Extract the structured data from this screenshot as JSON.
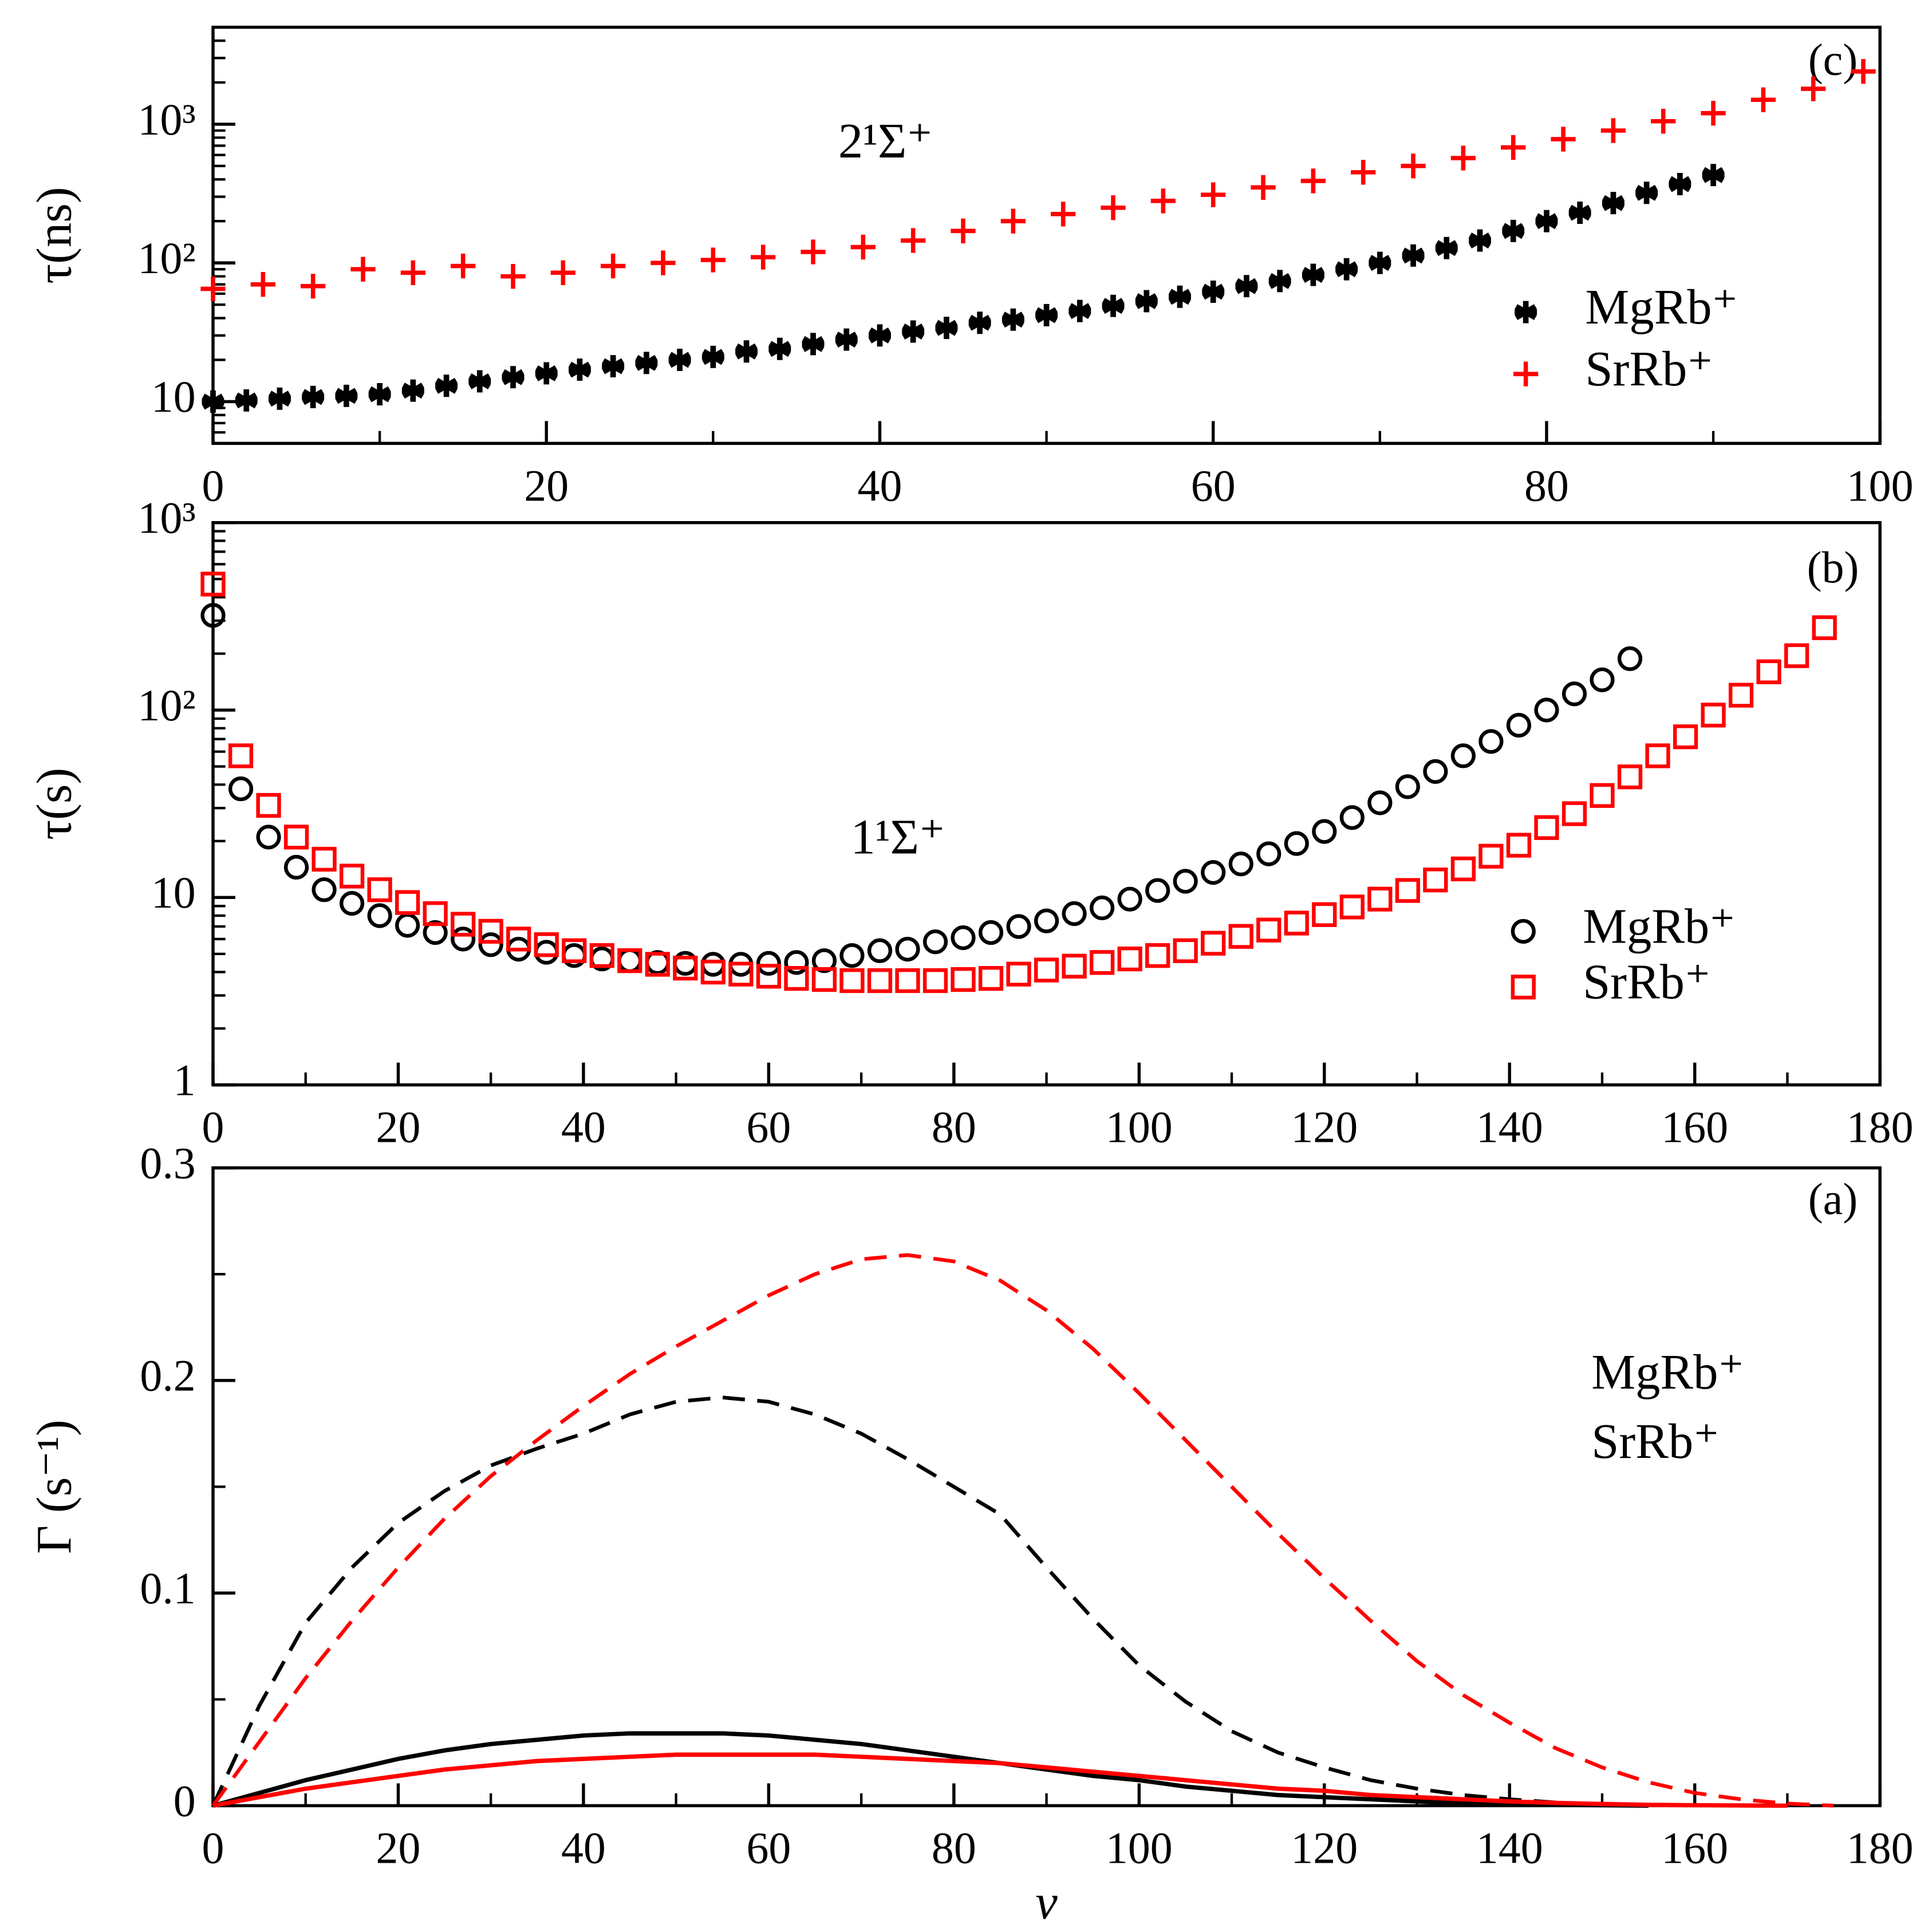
{
  "chart_data": [
    {
      "type": "scatter",
      "panel_label": "(c)",
      "annotation": "2¹Σ⁺",
      "ylabel": "τ(ns)",
      "log_y": true,
      "xlim": [
        0,
        100
      ],
      "xticks": [
        0,
        20,
        40,
        60,
        80,
        100
      ],
      "xminorticks": [
        10,
        30,
        50,
        70,
        90
      ],
      "ylim": [
        5,
        5000
      ],
      "yticks": [
        10,
        {
          "value": 100,
          "label": "10²"
        },
        {
          "value": 1000,
          "label": "10³"
        }
      ],
      "yminorticks": [
        6,
        7,
        8,
        9,
        20,
        30,
        40,
        50,
        60,
        70,
        80,
        90,
        200,
        300,
        400,
        500,
        600,
        700,
        800,
        900,
        2000,
        3000,
        4000
      ],
      "series": [
        {
          "name": "MgRb⁺",
          "color": "#000000",
          "marker": "asterisk",
          "x": [
            0,
            2,
            4,
            6,
            8,
            10,
            12,
            14,
            16,
            18,
            20,
            22,
            24,
            26,
            28,
            30,
            32,
            34,
            36,
            38,
            40,
            42,
            44,
            46,
            48,
            50,
            52,
            54,
            56,
            58,
            60,
            62,
            64,
            66,
            68,
            70,
            72,
            74,
            76,
            78,
            80,
            82,
            84,
            86,
            88,
            90
          ],
          "values": [
            10,
            10.2,
            10.5,
            10.8,
            11,
            11.3,
            12,
            13,
            14,
            15,
            16,
            17,
            18,
            19,
            20,
            21,
            23,
            24,
            26,
            28,
            30,
            32,
            34,
            37,
            39,
            42,
            45,
            49,
            53,
            57,
            62,
            68,
            74,
            82,
            90,
            100,
            113,
            128,
            145,
            170,
            200,
            230,
            270,
            320,
            370,
            430
          ]
        },
        {
          "name": "SrRb⁺",
          "color": "#ff0000",
          "marker": "plus",
          "x": [
            0,
            3,
            6,
            9,
            12,
            15,
            18,
            21,
            24,
            27,
            30,
            33,
            36,
            39,
            42,
            45,
            48,
            51,
            54,
            57,
            60,
            63,
            66,
            69,
            72,
            75,
            78,
            81,
            84,
            87,
            90,
            93,
            96,
            99
          ],
          "values": [
            65,
            70,
            68,
            90,
            85,
            95,
            80,
            85,
            95,
            100,
            105,
            110,
            120,
            130,
            145,
            170,
            200,
            225,
            250,
            280,
            310,
            350,
            390,
            450,
            500,
            570,
            680,
            780,
            900,
            1050,
            1200,
            1500,
            1800,
            2400
          ]
        }
      ]
    },
    {
      "type": "scatter",
      "panel_label": "(b)",
      "annotation": "1¹Σ⁺",
      "ylabel": "τ(s)",
      "log_y": true,
      "xlim": [
        0,
        180
      ],
      "xticks": [
        0,
        20,
        40,
        60,
        80,
        100,
        120,
        140,
        160,
        180
      ],
      "xminorticks": [
        10,
        30,
        50,
        70,
        90,
        110,
        130,
        150,
        170
      ],
      "ylim": [
        1,
        1000
      ],
      "yticks": [
        1,
        10,
        {
          "value": 100,
          "label": "10²"
        },
        {
          "value": 1000,
          "label": "10³"
        }
      ],
      "yminorticks": [
        2,
        3,
        4,
        5,
        6,
        7,
        8,
        9,
        20,
        30,
        40,
        50,
        60,
        70,
        80,
        90,
        200,
        300,
        400,
        500,
        600,
        700,
        800,
        900
      ],
      "series": [
        {
          "name": "MgRb⁺",
          "color": "#000000",
          "marker": "circle",
          "x": [
            0,
            3,
            6,
            9,
            12,
            15,
            18,
            21,
            24,
            27,
            30,
            33,
            36,
            39,
            42,
            45,
            48,
            51,
            54,
            57,
            60,
            63,
            66,
            69,
            72,
            75,
            78,
            81,
            84,
            87,
            90,
            93,
            96,
            99,
            102,
            105,
            108,
            111,
            114,
            117,
            120,
            123,
            126,
            129,
            132,
            135,
            138,
            141,
            144,
            147,
            150,
            153
          ],
          "values": [
            320,
            38,
            21,
            14.5,
            11,
            9.3,
            8,
            7.1,
            6.5,
            6,
            5.6,
            5.3,
            5.1,
            4.9,
            4.7,
            4.6,
            4.5,
            4.45,
            4.4,
            4.4,
            4.45,
            4.5,
            4.6,
            4.9,
            5.2,
            5.3,
            5.8,
            6.1,
            6.5,
            7.0,
            7.5,
            8.2,
            8.8,
            9.8,
            10.9,
            12.2,
            13.6,
            15.1,
            17.1,
            19.4,
            22.5,
            26.7,
            32,
            39,
            47,
            57,
            68,
            83,
            100,
            122,
            145,
            188
          ]
        },
        {
          "name": "SrRb⁺",
          "color": "#ff0000",
          "marker": "square",
          "x": [
            0,
            3,
            6,
            9,
            12,
            15,
            18,
            21,
            24,
            27,
            30,
            33,
            36,
            39,
            42,
            45,
            48,
            51,
            54,
            57,
            60,
            63,
            66,
            69,
            72,
            75,
            78,
            81,
            84,
            87,
            90,
            93,
            96,
            99,
            102,
            105,
            108,
            111,
            114,
            117,
            120,
            123,
            126,
            129,
            132,
            135,
            138,
            141,
            144,
            147,
            150,
            153,
            156,
            159,
            162,
            165,
            168,
            171,
            174
          ],
          "values": [
            470,
            57,
            31,
            21,
            16,
            13,
            11,
            9.4,
            8.2,
            7.2,
            6.6,
            6,
            5.6,
            5.2,
            4.9,
            4.6,
            4.4,
            4.2,
            4,
            3.9,
            3.8,
            3.7,
            3.65,
            3.6,
            3.6,
            3.6,
            3.6,
            3.65,
            3.7,
            3.9,
            4.1,
            4.3,
            4.5,
            4.7,
            4.9,
            5.2,
            5.7,
            6.2,
            6.7,
            7.3,
            8.1,
            8.9,
            9.8,
            10.9,
            12.4,
            14.2,
            16.6,
            19,
            23.6,
            28,
            35,
            44,
            57,
            72,
            94,
            120,
            160,
            195,
            275
          ]
        }
      ]
    },
    {
      "type": "line",
      "panel_label": "(a)",
      "ylabel": "Γ (s⁻¹)",
      "xlabel": "v",
      "log_y": false,
      "xlim": [
        0,
        180
      ],
      "xticks": [
        0,
        20,
        40,
        60,
        80,
        100,
        120,
        140,
        160,
        180
      ],
      "xminorticks": [
        10,
        30,
        50,
        70,
        90,
        110,
        130,
        150,
        170
      ],
      "ylim": [
        0,
        0.3
      ],
      "yticks": [
        0,
        0.1,
        0.2,
        0.3
      ],
      "yminorticks": [
        0.05,
        0.15,
        0.25
      ],
      "legend": [
        {
          "name": "MgRb⁺",
          "color": "#000000"
        },
        {
          "name": "SrRb⁺",
          "color": "#ff0000"
        }
      ],
      "x": [
        0,
        5,
        10,
        15,
        20,
        25,
        30,
        35,
        40,
        45,
        50,
        55,
        60,
        65,
        70,
        75,
        80,
        85,
        90,
        95,
        100,
        105,
        110,
        115,
        120,
        125,
        130,
        135,
        140,
        145,
        150,
        155,
        160,
        165,
        170,
        175
      ],
      "series": [
        {
          "color": "#000000",
          "dashed": true,
          "values": [
            0,
            0.047,
            0.086,
            0.112,
            0.133,
            0.148,
            0.16,
            0.168,
            0.175,
            0.184,
            0.19,
            0.192,
            0.19,
            0.184,
            0.175,
            0.163,
            0.15,
            0.137,
            0.112,
            0.088,
            0.066,
            0.049,
            0.035,
            0.025,
            0.018,
            0.012,
            0.008,
            0.005,
            0.003,
            0.0015,
            0.0006,
            0,
            null,
            null,
            null,
            null
          ]
        },
        {
          "color": "#ff0000",
          "dashed": true,
          "values": [
            0,
            0.03,
            0.06,
            0.087,
            0.112,
            0.135,
            0.155,
            0.172,
            0.188,
            0.203,
            0.216,
            0.228,
            0.24,
            0.25,
            0.257,
            0.259,
            0.256,
            0.247,
            0.233,
            0.215,
            0.194,
            0.172,
            0.15,
            0.128,
            0.107,
            0.087,
            0.068,
            0.052,
            0.039,
            0.027,
            0.018,
            0.011,
            0.006,
            0.003,
            0.001,
            0
          ]
        },
        {
          "color": "#000000",
          "dashed": false,
          "values": [
            0,
            0.006,
            0.012,
            0.017,
            0.022,
            0.026,
            0.029,
            0.031,
            0.033,
            0.034,
            0.034,
            0.034,
            0.033,
            0.031,
            0.029,
            0.026,
            0.023,
            0.02,
            0.017,
            0.014,
            0.012,
            0.009,
            0.007,
            0.005,
            0.004,
            0.003,
            0.002,
            0.001,
            0.0007,
            0.0004,
            0.0002,
            0,
            null,
            null,
            null,
            null
          ]
        },
        {
          "color": "#ff0000",
          "dashed": false,
          "values": [
            0,
            0.004,
            0.008,
            0.011,
            0.014,
            0.017,
            0.019,
            0.021,
            0.022,
            0.023,
            0.024,
            0.024,
            0.024,
            0.024,
            0.023,
            0.022,
            0.021,
            0.02,
            0.018,
            0.016,
            0.014,
            0.012,
            0.01,
            0.008,
            0.007,
            0.005,
            0.004,
            0.003,
            0.002,
            0.0013,
            0.0008,
            0.0004,
            0.0002,
            0.0001,
            0,
            null
          ]
        }
      ]
    }
  ]
}
